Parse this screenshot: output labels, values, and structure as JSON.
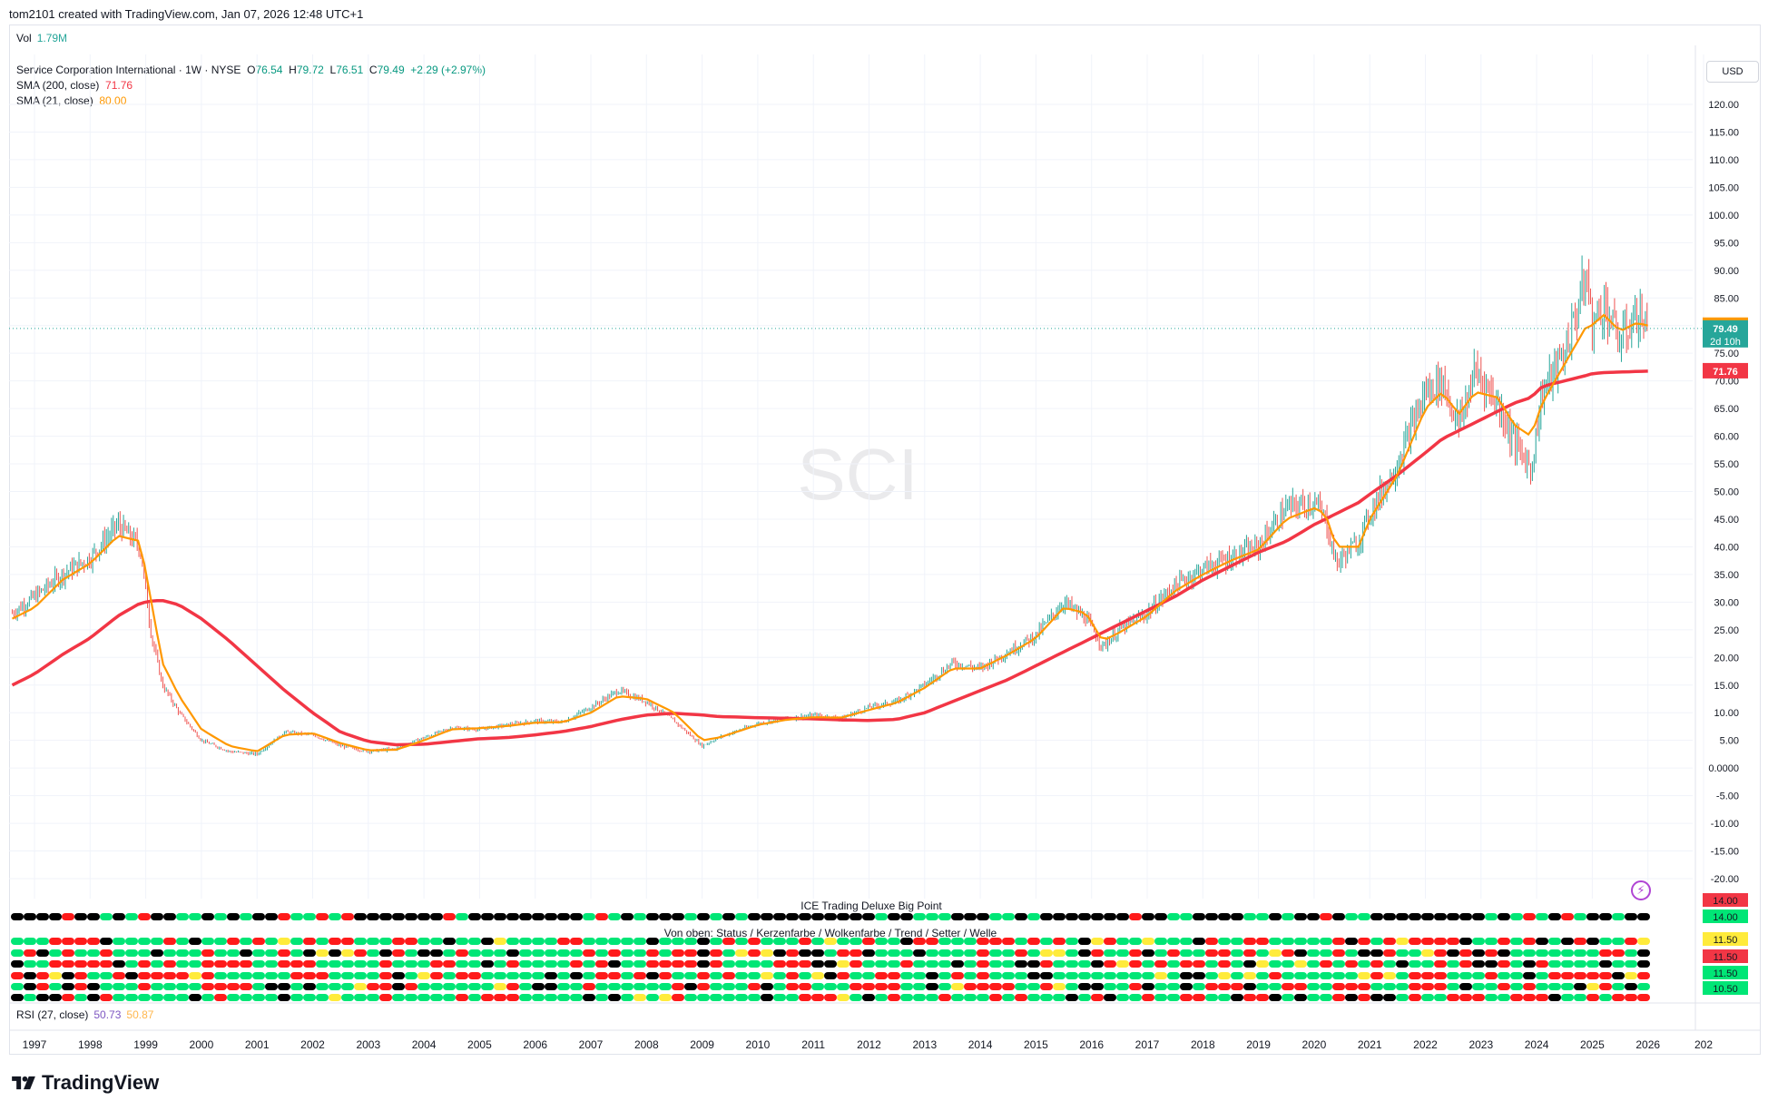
{
  "header": {
    "created_line": "tom2101 created with TradingView.com, Jan 07, 2026 12:48 UTC+1"
  },
  "volume": {
    "label": "Vol",
    "value": "1.79M"
  },
  "legend": {
    "symbol": "Service Corporation International · 1W · NYSE",
    "o_label": "O",
    "o_value": "76.54",
    "h_label": "H",
    "h_value": "79.72",
    "l_label": "L",
    "l_value": "76.51",
    "c_label": "C",
    "c_value": "79.49",
    "change": "+2.29 (+2.97%)",
    "sma200_label": "SMA (200, close)",
    "sma200_value": "71.76",
    "sma21_label": "SMA (21, close)",
    "sma21_value": "80.00"
  },
  "currency_button": "USD",
  "watermark": "SCI",
  "indicator": {
    "title": "ICE Trading Deluxe Big Point",
    "subtitle": "Von oben: Status / Kerzenfarbe / Wolkenfarbe / Trend / Setter / Welle",
    "scale_labels": [
      "14.00",
      "14.00",
      "11.50",
      "11.50",
      "11.50",
      "10.50"
    ],
    "scale_colors": [
      "#f23645",
      "#00e676",
      "#ffeb3b",
      "#f23645",
      "#00e676",
      "#00e676"
    ]
  },
  "rsi": {
    "label": "RSI (27, close)",
    "v1": "50.73",
    "v2": "50.87"
  },
  "price_badges": {
    "sma21": "80.00",
    "last": "79.49",
    "countdown": "2d 10h",
    "sma200": "71.76"
  },
  "brand": "TradingView",
  "colors": {
    "up": "#26a69a",
    "down": "#ef5350",
    "sma200": "#f23645",
    "sma21": "#ff9800",
    "green": "#00e676",
    "red": "#ff1a1a",
    "black": "#000000",
    "yellow": "#ffeb3b"
  },
  "chart_data": {
    "type": "line",
    "title": "Service Corporation International · 1W · NYSE",
    "x_ticks": [
      "1997",
      "1998",
      "1999",
      "2000",
      "2001",
      "2002",
      "2003",
      "2004",
      "2005",
      "2006",
      "2007",
      "2008",
      "2009",
      "2010",
      "2011",
      "2012",
      "2013",
      "2014",
      "2015",
      "2016",
      "2017",
      "2018",
      "2019",
      "2020",
      "2021",
      "2022",
      "2023",
      "2024",
      "2025",
      "2026",
      "202"
    ],
    "y_ticks": [
      "120.00",
      "115.00",
      "110.00",
      "105.00",
      "100.00",
      "95.00",
      "90.00",
      "85.00",
      "80.00",
      "75.00",
      "70.00",
      "65.00",
      "60.00",
      "55.00",
      "50.00",
      "45.00",
      "40.00",
      "35.00",
      "30.00",
      "25.00",
      "20.00",
      "15.00",
      "10.00",
      "5.00",
      "0.0000",
      "-5.00",
      "-10.00",
      "-15.00",
      "-20.00"
    ],
    "ylim": [
      -20,
      120
    ],
    "x": [
      1996.6,
      1997.0,
      1997.5,
      1998.0,
      1998.5,
      1998.9,
      1999.1,
      1999.3,
      1999.6,
      2000.0,
      2000.5,
      2001.0,
      2001.5,
      2002.0,
      2002.5,
      2003.0,
      2003.5,
      2004.0,
      2004.5,
      2005.0,
      2005.5,
      2006.0,
      2006.5,
      2007.0,
      2007.5,
      2008.0,
      2008.5,
      2009.0,
      2009.3,
      2009.7,
      2010.0,
      2010.5,
      2011.0,
      2011.5,
      2012.0,
      2012.5,
      2013.0,
      2013.5,
      2014.0,
      2014.5,
      2015.0,
      2015.5,
      2015.9,
      2016.2,
      2016.5,
      2017.0,
      2017.5,
      2018.0,
      2018.5,
      2019.0,
      2019.5,
      2020.0,
      2020.2,
      2020.4,
      2020.8,
      2021.0,
      2021.5,
      2022.0,
      2022.3,
      2022.6,
      2022.9,
      2023.3,
      2023.6,
      2023.9,
      2024.1,
      2024.5,
      2024.9,
      2025.0,
      2025.2,
      2025.5,
      2025.8,
      2026.0
    ],
    "series": [
      {
        "name": "SCI",
        "values": [
          28,
          31,
          35,
          38,
          44,
          40,
          24,
          15,
          10,
          5,
          3,
          2.5,
          6.5,
          6,
          4,
          3,
          3.5,
          5.5,
          7.3,
          7,
          7.8,
          8.5,
          8.3,
          11,
          14,
          12,
          8.5,
          4,
          5.5,
          7,
          8,
          9,
          9.5,
          9,
          11,
          12,
          15,
          19,
          18,
          21,
          24,
          30,
          27,
          22,
          25,
          28,
          33,
          36,
          38,
          40,
          47,
          48,
          45,
          37,
          41,
          46,
          55,
          68,
          70,
          62,
          72,
          66,
          59,
          54,
          68,
          75,
          89,
          80,
          84,
          77,
          82,
          79.49
        ]
      },
      {
        "name": "SMA (21, close)",
        "values": [
          27,
          29,
          34,
          37,
          42,
          41,
          30,
          19,
          13,
          7,
          4,
          3,
          6,
          6.3,
          4.5,
          3.2,
          3.3,
          5,
          7,
          7.2,
          7.6,
          8.2,
          8.3,
          10,
          13,
          12.5,
          10,
          5,
          5.5,
          6.8,
          7.8,
          8.7,
          9.2,
          9.1,
          10.5,
          11.8,
          14.5,
          18,
          18,
          20.5,
          23.5,
          29,
          28,
          23,
          24.5,
          27.5,
          32,
          35,
          37.5,
          39.5,
          45,
          47,
          46,
          40,
          40,
          45,
          53,
          65,
          68,
          64,
          68,
          67,
          62,
          60,
          66,
          73,
          80,
          80,
          82,
          79,
          80.5,
          80
        ]
      },
      {
        "name": "SMA (200, close)",
        "values": [
          15,
          17,
          20.5,
          23.5,
          27.5,
          29.8,
          30.2,
          30.3,
          29.5,
          27,
          23,
          18.5,
          14,
          10,
          6.5,
          4.8,
          4.2,
          4.3,
          4.8,
          5.3,
          5.5,
          6,
          6.6,
          7.5,
          8.7,
          9.6,
          9.9,
          9.6,
          9.3,
          9.2,
          9.1,
          9,
          8.9,
          8.7,
          8.6,
          8.8,
          10,
          12,
          14,
          16,
          18.5,
          21,
          23,
          24.5,
          26,
          28.5,
          31,
          34,
          36.5,
          39,
          41,
          44,
          45,
          46,
          48,
          49.5,
          53,
          57,
          59.5,
          61,
          62.5,
          64.5,
          66,
          67,
          69,
          70,
          71,
          71.3,
          71.5,
          71.6,
          71.7,
          71.76
        ]
      }
    ]
  }
}
